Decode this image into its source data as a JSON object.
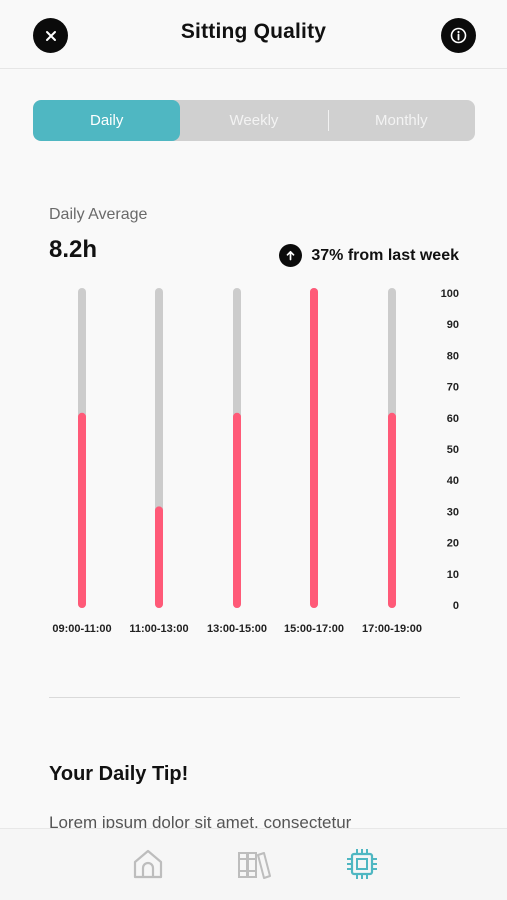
{
  "header": {
    "title": "Sitting Quality",
    "close_icon": "close-icon",
    "info_icon": "info-icon"
  },
  "tabs": [
    {
      "label": "Daily",
      "active": true
    },
    {
      "label": "Weekly",
      "active": false
    },
    {
      "label": "Monthly",
      "active": false
    }
  ],
  "summary": {
    "label": "Daily Average",
    "value": "8.2h",
    "trend_text": "37% from last week",
    "trend_icon": "arrow-up-icon"
  },
  "chart_data": {
    "type": "bar",
    "categories": [
      "09:00-11:00",
      "11:00-13:00",
      "13:00-15:00",
      "15:00-17:00",
      "17:00-19:00"
    ],
    "values": [
      60,
      30,
      60,
      100,
      60
    ],
    "y_ticks": [
      "100",
      "90",
      "80",
      "70",
      "60",
      "50",
      "40",
      "30",
      "20",
      "10",
      "0"
    ],
    "ylim": [
      0,
      100
    ],
    "bar_color": "#ff5a78",
    "track_color": "#cccccc",
    "grid": false
  },
  "tip": {
    "title": "Your Daily Tip!",
    "body": "Lorem ipsum dolor sit amet, consectetur"
  },
  "nav": [
    {
      "name": "home",
      "icon": "home-icon",
      "active": false
    },
    {
      "name": "library",
      "icon": "library-icon",
      "active": false
    },
    {
      "name": "device",
      "icon": "chip-icon",
      "active": true
    }
  ],
  "colors": {
    "accent": "#4fb7c2",
    "bar": "#ff5a78",
    "dark": "#0b0b0b",
    "inactive": "#bdbdbd"
  }
}
